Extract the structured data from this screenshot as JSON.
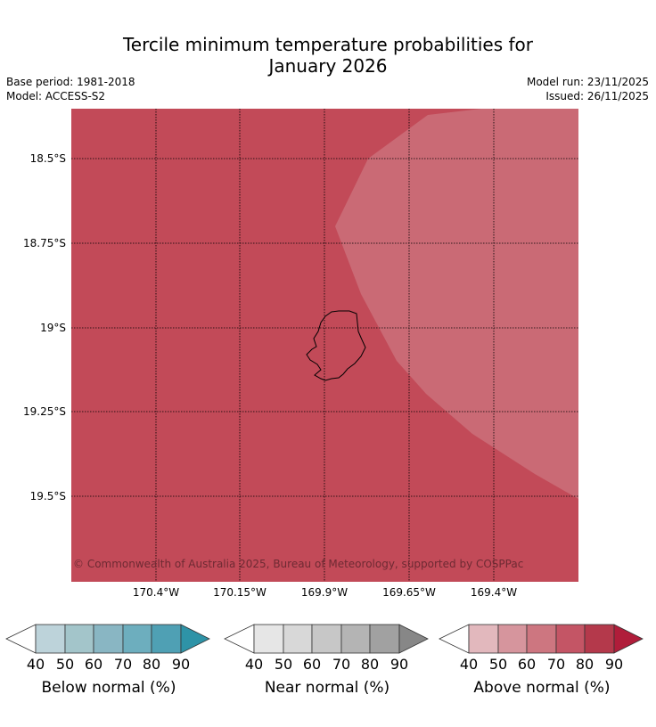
{
  "header": {
    "title_line1": "Tercile minimum temperature probabilities for",
    "title_line2": "January 2026",
    "base_period": "Base period: 1981-2018",
    "model": "Model: ACCESS-S2",
    "model_run": "Model run: 23/11/2025",
    "issued": "Issued: 26/11/2025"
  },
  "map": {
    "lat_labels": [
      "18.5°S",
      "18.75°S",
      "19°S",
      "19.25°S",
      "19.5°S"
    ],
    "lon_labels": [
      "170.4°W",
      "170.15°W",
      "169.9°W",
      "169.65°W",
      "169.4°W"
    ],
    "copyright": "© Commonwealth of Australia 2025, Bureau of Meteorology, supported by COSPPac",
    "colors": {
      "above_70_80": "#c24a58",
      "above_60_70": "#ca6a75",
      "coastline": "#000000"
    },
    "regions": [
      {
        "category": "Above normal",
        "band": "70-80"
      },
      {
        "category": "Above normal",
        "band": "60-70"
      }
    ]
  },
  "legends": [
    {
      "title": "Below normal (%)",
      "ticks": [
        "40",
        "50",
        "60",
        "70",
        "80",
        "90"
      ],
      "colors": [
        "#bdd3da",
        "#a3c5ca",
        "#89b6c3",
        "#6daebe",
        "#4fa0b4",
        "#2e93a7"
      ]
    },
    {
      "title": "Near normal (%)",
      "ticks": [
        "40",
        "50",
        "60",
        "70",
        "80",
        "90"
      ],
      "colors": [
        "#e6e6e6",
        "#d8d8d8",
        "#c7c7c7",
        "#b4b4b4",
        "#a1a1a1",
        "#878787"
      ]
    },
    {
      "title": "Above normal (%)",
      "ticks": [
        "40",
        "50",
        "60",
        "70",
        "80",
        "90"
      ],
      "colors": [
        "#e2b8bd",
        "#d6959d",
        "#cd7680",
        "#c45565",
        "#b4394b",
        "#b01d3a"
      ]
    }
  ]
}
